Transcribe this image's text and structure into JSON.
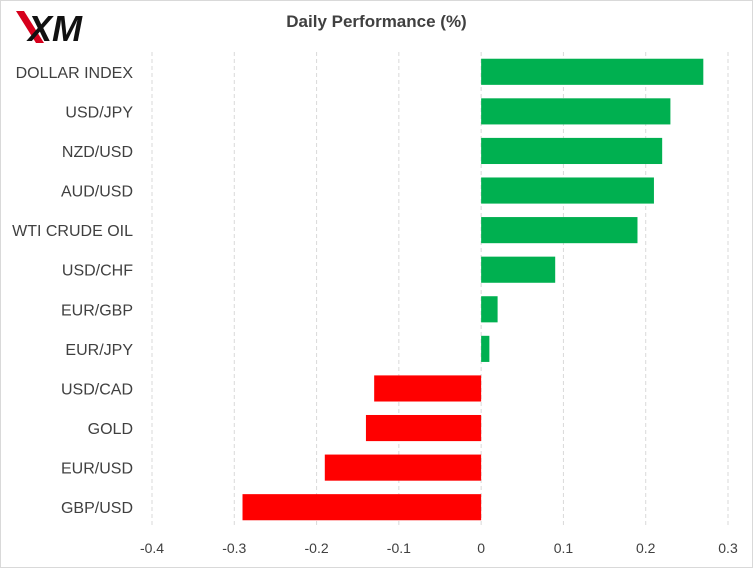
{
  "colors": {
    "positive": "#00b050",
    "negative": "#ff0000",
    "grid": "#d9d9d9",
    "text": "#404040",
    "logo_text": "#111111",
    "logo_accent": "#d6001c"
  },
  "logo": {
    "text": "XM",
    "icon": "xm-logo-icon"
  },
  "chart_data": {
    "type": "bar",
    "orientation": "horizontal",
    "title": "Daily Performance  (%)",
    "categories": [
      "DOLLAR INDEX",
      "USD/JPY",
      "NZD/USD",
      "AUD/USD",
      "WTI CRUDE OIL",
      "USD/CHF",
      "EUR/GBP",
      "EUR/JPY",
      "USD/CAD",
      "GOLD",
      "EUR/USD",
      "GBP/USD"
    ],
    "values": [
      0.27,
      0.23,
      0.22,
      0.21,
      0.19,
      0.09,
      0.02,
      0.01,
      -0.13,
      -0.14,
      -0.19,
      -0.29
    ],
    "xlim": [
      -0.4,
      0.3
    ],
    "xticks": [
      -0.4,
      -0.3,
      -0.2,
      -0.1,
      0,
      0.1,
      0.2,
      0.3
    ],
    "xtick_labels": [
      "-0.4",
      "-0.3",
      "-0.2",
      "-0.1",
      "0",
      "0.1",
      "0.2",
      "0.3"
    ],
    "grid": "vertical dashed",
    "legend": "none"
  }
}
